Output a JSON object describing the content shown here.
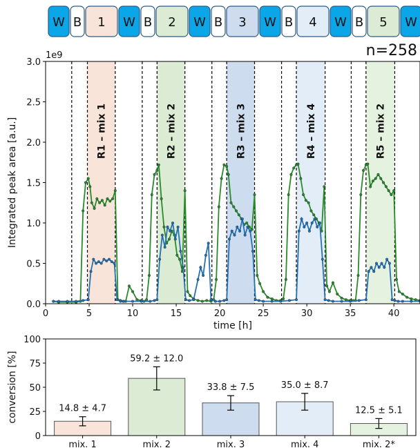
{
  "sequence": {
    "segments": [
      {
        "label": "W",
        "type": "wash",
        "color": "#0aa6e8"
      },
      {
        "label": "B",
        "type": "blank",
        "color": "#ffffff"
      },
      {
        "label": "1",
        "type": "mix",
        "color": "#f8e4d9"
      },
      {
        "label": "W",
        "type": "wash",
        "color": "#0aa6e8"
      },
      {
        "label": "B",
        "type": "blank",
        "color": "#ffffff"
      },
      {
        "label": "2",
        "type": "mix",
        "color": "#dcecd4"
      },
      {
        "label": "W",
        "type": "wash",
        "color": "#0aa6e8"
      },
      {
        "label": "B",
        "type": "blank",
        "color": "#ffffff"
      },
      {
        "label": "3",
        "type": "mix",
        "color": "#cddcee"
      },
      {
        "label": "W",
        "type": "wash",
        "color": "#0aa6e8"
      },
      {
        "label": "B",
        "type": "blank",
        "color": "#ffffff"
      },
      {
        "label": "4",
        "type": "mix",
        "color": "#e3edf8"
      },
      {
        "label": "W",
        "type": "wash",
        "color": "#0aa6e8"
      },
      {
        "label": "B",
        "type": "blank",
        "color": "#ffffff"
      },
      {
        "label": "5",
        "type": "mix",
        "color": "#dcecd4"
      },
      {
        "label": "W",
        "type": "wash",
        "color": "#0aa6e8"
      }
    ]
  },
  "n_label": "n=258",
  "chart_data": [
    {
      "type": "line",
      "xlabel": "time [h]",
      "ylabel": "Integrated peak area [a.u.]",
      "y_multiplier": "1e9",
      "xlim": [
        0,
        43
      ],
      "ylim": [
        0,
        3.0
      ],
      "x_ticks": [
        "0",
        "5",
        "10",
        "15",
        "20",
        "25",
        "30",
        "35",
        "40"
      ],
      "y_ticks": [
        "0.0",
        "0.5",
        "1.0",
        "1.5",
        "2.0",
        "2.5",
        "3.0"
      ],
      "boundaries": [
        3.0,
        4.8,
        8.0,
        11.1,
        12.8,
        16.0,
        19.1,
        20.8,
        24.0,
        27.1,
        28.8,
        32.1,
        35.1,
        36.8,
        40.1
      ],
      "regions": [
        {
          "label": "R1 – mix 1",
          "x0": 4.8,
          "x1": 8.0,
          "color": "#f8e4d9"
        },
        {
          "label": "R2 – mix 2",
          "x0": 12.8,
          "x1": 16.0,
          "color": "#dcecd4"
        },
        {
          "label": "R3 – mix 3",
          "x0": 20.8,
          "x1": 24.0,
          "color": "#cddcee"
        },
        {
          "label": "R4 – mix 4",
          "x0": 28.8,
          "x1": 32.1,
          "color": "#e3edf8"
        },
        {
          "label": "R5 – mix 2",
          "x0": 36.8,
          "x1": 40.1,
          "color": "#e6f2e0"
        }
      ],
      "series": [
        {
          "color": "#2a8a2a",
          "x": [
            0.9,
            1.5,
            2.5,
            3.5,
            4.0,
            4.3,
            4.6,
            4.9,
            5.1,
            5.3,
            5.6,
            5.9,
            6.2,
            6.5,
            6.8,
            7.1,
            7.4,
            7.7,
            8.0,
            8.3,
            8.6,
            8.9,
            9.2,
            9.6,
            10.0,
            10.5,
            11.0,
            11.3,
            11.6,
            11.9,
            12.2,
            12.5,
            12.8,
            13.0,
            13.3,
            13.6,
            13.9,
            14.2,
            14.5,
            14.8,
            15.1,
            15.4,
            15.7,
            16.0,
            16.3,
            16.6,
            17.0,
            17.5,
            18.0,
            18.5,
            19.0,
            19.3,
            19.6,
            19.9,
            20.2,
            20.5,
            20.8,
            21.0,
            21.3,
            21.6,
            21.9,
            22.2,
            22.5,
            22.8,
            23.1,
            23.4,
            23.7,
            24.0,
            24.3,
            24.6,
            25.0,
            25.5,
            26.0,
            26.5,
            27.0,
            27.3,
            27.6,
            27.9,
            28.2,
            28.5,
            28.8,
            29.0,
            29.3,
            29.6,
            29.9,
            30.2,
            30.5,
            30.8,
            31.1,
            31.4,
            31.7,
            32.0,
            32.3,
            32.6,
            33.0,
            33.5,
            34.0,
            34.5,
            35.0,
            35.3,
            35.6,
            35.9,
            36.2,
            36.5,
            36.8,
            37.0,
            37.3,
            37.6,
            37.9,
            38.2,
            38.5,
            38.8,
            39.1,
            39.4,
            39.7,
            40.0,
            40.3,
            40.6,
            41.0,
            41.5,
            42.0,
            42.5,
            43.0
          ],
          "y": [
            0.03,
            0.02,
            0.02,
            0.02,
            0.03,
            1.15,
            1.5,
            1.55,
            1.45,
            1.25,
            1.18,
            1.3,
            1.25,
            1.28,
            1.22,
            1.3,
            1.27,
            1.3,
            1.4,
            0.05,
            0.04,
            0.03,
            0.03,
            0.22,
            0.15,
            0.05,
            0.04,
            0.03,
            0.05,
            0.35,
            1.35,
            1.6,
            1.65,
            1.72,
            1.3,
            0.95,
            0.75,
            0.8,
            0.9,
            0.85,
            0.6,
            0.55,
            0.4,
            1.4,
            0.15,
            0.1,
            0.06,
            0.04,
            0.03,
            0.04,
            0.03,
            0.05,
            0.3,
            1.2,
            1.55,
            1.72,
            1.7,
            1.6,
            1.25,
            1.2,
            1.15,
            1.1,
            1.05,
            0.98,
            1.0,
            0.95,
            0.92,
            1.35,
            0.35,
            0.25,
            0.15,
            0.08,
            0.06,
            0.04,
            0.04,
            0.06,
            0.3,
            1.35,
            1.6,
            1.68,
            1.72,
            1.73,
            1.55,
            1.35,
            1.28,
            1.25,
            1.15,
            1.1,
            1.05,
            1.0,
            0.9,
            1.45,
            0.22,
            0.15,
            0.26,
            0.12,
            0.07,
            0.05,
            0.04,
            0.04,
            0.04,
            0.35,
            1.35,
            1.65,
            1.72,
            1.73,
            1.45,
            1.52,
            1.55,
            1.6,
            1.55,
            1.5,
            1.45,
            1.4,
            1.35,
            1.4,
            0.3,
            0.15,
            0.12,
            0.08,
            0.06,
            0.05,
            0.04
          ]
        },
        {
          "color": "#2470b0",
          "x": [
            0.9,
            1.5,
            2.5,
            3.5,
            4.3,
            4.9,
            5.2,
            5.5,
            5.8,
            6.1,
            6.4,
            6.7,
            7.0,
            7.3,
            7.6,
            7.9,
            8.2,
            8.6,
            9.0,
            10.0,
            11.0,
            12.0,
            12.5,
            12.8,
            13.1,
            13.4,
            13.7,
            14.0,
            14.3,
            14.6,
            14.9,
            15.2,
            15.5,
            15.8,
            16.1,
            16.5,
            17.0,
            17.5,
            17.8,
            18.1,
            18.4,
            18.7,
            19.0,
            19.5,
            20.0,
            20.5,
            20.8,
            21.1,
            21.4,
            21.7,
            22.0,
            22.3,
            22.6,
            22.9,
            23.2,
            23.5,
            23.8,
            24.1,
            24.5,
            25.0,
            26.0,
            27.0,
            28.0,
            28.8,
            29.1,
            29.4,
            29.7,
            30.0,
            30.3,
            30.6,
            30.9,
            31.2,
            31.5,
            31.8,
            32.1,
            32.5,
            33.0,
            34.0,
            35.0,
            36.0,
            36.8,
            37.1,
            37.4,
            37.7,
            38.0,
            38.3,
            38.6,
            38.9,
            39.2,
            39.5,
            39.8,
            40.1,
            40.5,
            41.0,
            42.0,
            43.0
          ],
          "y": [
            0.03,
            0.03,
            0.03,
            0.03,
            0.04,
            0.05,
            0.4,
            0.55,
            0.5,
            0.52,
            0.5,
            0.55,
            0.53,
            0.55,
            0.52,
            0.5,
            0.05,
            0.03,
            0.03,
            0.03,
            0.03,
            0.03,
            0.04,
            0.05,
            0.55,
            0.85,
            0.7,
            0.95,
            0.9,
            1.0,
            0.8,
            0.95,
            0.65,
            0.45,
            0.05,
            0.04,
            0.05,
            0.3,
            0.45,
            0.35,
            0.6,
            0.75,
            0.05,
            0.03,
            0.03,
            0.04,
            0.05,
            0.8,
            0.9,
            0.85,
            0.95,
            0.9,
            1.05,
            0.85,
            0.95,
            0.9,
            0.65,
            0.05,
            0.04,
            0.03,
            0.03,
            0.03,
            0.04,
            0.05,
            0.9,
            1.05,
            0.95,
            1.0,
            0.9,
            1.0,
            1.05,
            0.95,
            1.0,
            0.55,
            0.05,
            0.04,
            0.03,
            0.03,
            0.03,
            0.04,
            0.05,
            0.4,
            0.45,
            0.4,
            0.5,
            0.45,
            0.5,
            0.45,
            0.55,
            0.5,
            0.05,
            0.04,
            0.03,
            0.03,
            0.03,
            0.03
          ]
        }
      ]
    },
    {
      "type": "bar",
      "ylabel": "conversion [%]",
      "ylim": [
        0,
        100
      ],
      "y_ticks": [
        "0",
        "25",
        "50",
        "75",
        "100"
      ],
      "categories": [
        "mix. 1",
        "mix. 2",
        "mix. 3",
        "mix. 4",
        "mix. 2*"
      ],
      "values": [
        14.8,
        59.2,
        33.8,
        35.0,
        12.5
      ],
      "errors": [
        4.7,
        12.0,
        7.5,
        8.7,
        5.1
      ],
      "value_labels": [
        "14.8 ± 4.7",
        "59.2 ± 12.0",
        "33.8 ± 7.5",
        "35.0 ± 8.7",
        "12.5 ± 5.1"
      ],
      "colors": [
        "#f8e4d9",
        "#dcecd4",
        "#cddcee",
        "#e3edf8",
        "#e6f2e0"
      ]
    }
  ]
}
